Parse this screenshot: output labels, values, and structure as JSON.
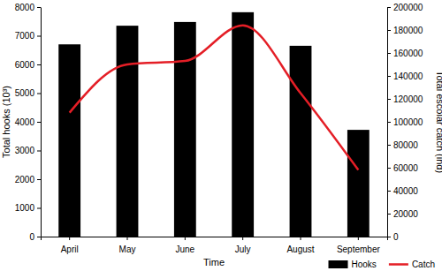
{
  "chart_data": {
    "type": "bar",
    "x_label": "Time",
    "y_label": "Total hooks (10³)",
    "y2_label": "Total escolar catch (ind)",
    "categories": [
      "April",
      "May",
      "June",
      "July",
      "August",
      "September"
    ],
    "series": [
      {
        "name": "Hooks",
        "type": "bar",
        "color": "#000000",
        "values": [
          6700,
          7350,
          7480,
          7820,
          6650,
          3720
        ]
      },
      {
        "name": "Catch",
        "type": "line",
        "color": "#e41e26",
        "line_style": "solid",
        "axis": "y2",
        "values": [
          108000,
          150000,
          153000,
          184000,
          125000,
          58000
        ]
      }
    ],
    "ylim": [
      0,
      8000
    ],
    "yticks": [
      0,
      1000,
      2000,
      3000,
      4000,
      5000,
      6000,
      7000,
      8000
    ],
    "y2lim": [
      0,
      200000
    ],
    "y2ticks": [
      0,
      20000,
      40000,
      60000,
      80000,
      100000,
      120000,
      140000,
      160000,
      180000,
      200000
    ],
    "legend": "lower right",
    "grid": false
  }
}
